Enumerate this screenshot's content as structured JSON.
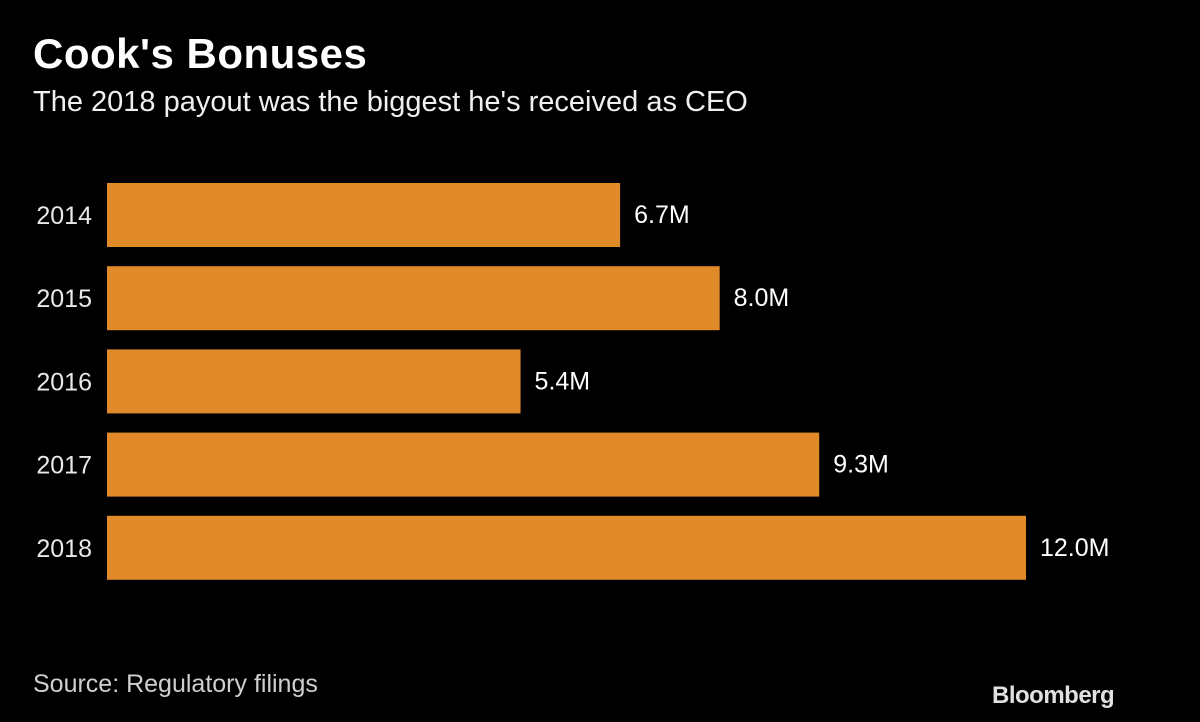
{
  "chart_data": {
    "type": "bar",
    "orientation": "horizontal",
    "title": "Cook's Bonuses",
    "subtitle": "The 2018 payout was the biggest he's received as CEO",
    "categories": [
      "2014",
      "2015",
      "2016",
      "2017",
      "2018"
    ],
    "values": [
      6.7,
      8.0,
      5.4,
      9.3,
      12.0
    ],
    "data_labels": [
      "6.7M",
      "8.0M",
      "5.4M",
      "9.3M",
      "12.0M"
    ],
    "unit": "M",
    "xlim": [
      0,
      12.0
    ],
    "grid": false,
    "bar_color": "#e08a2a",
    "source": "Source: Regulatory filings",
    "logo": "Bloomberg"
  }
}
